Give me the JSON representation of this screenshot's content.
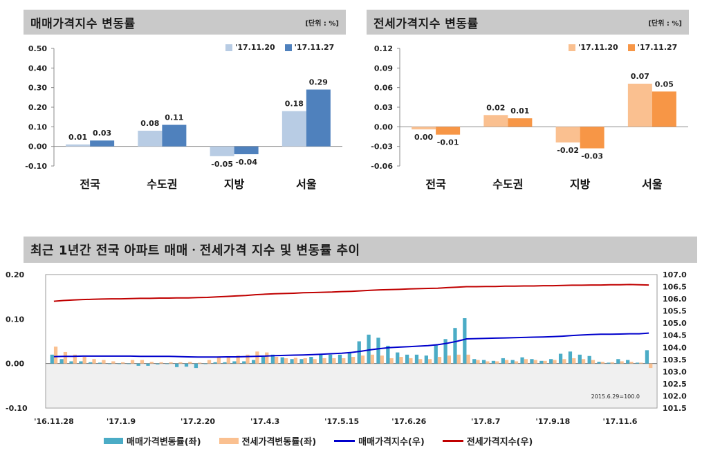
{
  "chart_data": [
    {
      "type": "bar",
      "title": "매매가격지수 변동률",
      "unit": "[단위 : %]",
      "categories": [
        "전국",
        "수도권",
        "지방",
        "서울"
      ],
      "series": [
        {
          "name": "'17.11.20",
          "values": [
            0.01,
            0.08,
            -0.05,
            0.18
          ],
          "color": "#b8cce4"
        },
        {
          "name": "'17.11.27",
          "values": [
            0.03,
            0.11,
            -0.04,
            0.29
          ],
          "color": "#4f81bd"
        }
      ],
      "data_labels": [
        [
          "0.01",
          "0.08",
          "-0.05",
          "0.18"
        ],
        [
          "0.03",
          "0.11",
          "-0.04",
          "0.29"
        ]
      ],
      "ylim": [
        -0.1,
        0.5
      ],
      "yticks": [
        "-0.10",
        "0.00",
        "0.10",
        "0.20",
        "0.30",
        "0.40",
        "0.50"
      ],
      "legend": "top-right"
    },
    {
      "type": "bar",
      "title": "전세가격지수 변동률",
      "unit": "[단위 : %]",
      "categories": [
        "전국",
        "수도권",
        "지방",
        "서울"
      ],
      "series": [
        {
          "name": "'17.11.20",
          "values": [
            -0.004,
            0.018,
            -0.024,
            0.066
          ],
          "color": "#fac090"
        },
        {
          "name": "'17.11.27",
          "values": [
            -0.012,
            0.013,
            -0.033,
            0.054
          ],
          "color": "#f79646"
        }
      ],
      "data_labels": [
        [
          "0.00",
          "0.02",
          "-0.02",
          "0.07"
        ],
        [
          "-0.01",
          "0.01",
          "-0.03",
          "0.05"
        ]
      ],
      "ylim": [
        -0.06,
        0.12
      ],
      "yticks": [
        "-0.06",
        "-0.03",
        "0.00",
        "0.03",
        "0.06",
        "0.09",
        "0.12"
      ],
      "legend": "top-right"
    },
    {
      "type": "bar+line",
      "title": "최근 1년간 전국 아파트 매매ㆍ전세가격 지수 및 변동률 추이",
      "note": "2015.6.29=100.0",
      "x_ticks": [
        "'16.11.28",
        "'17.1.9",
        "'17.2.20",
        "'17.4.3",
        "'17.5.15",
        "'17.6.26",
        "'17.8.7",
        "'17.9.18",
        "'17.11.6"
      ],
      "y_left": {
        "ylim": [
          -0.1,
          0.2
        ],
        "ticks": [
          "-0.10",
          "0.00",
          "0.10",
          "0.20"
        ]
      },
      "y_right": {
        "ylim": [
          101.5,
          107.0
        ],
        "ticks": [
          "101.5",
          "102.0",
          "102.5",
          "103.0",
          "103.5",
          "104.0",
          "104.5",
          "105.0",
          "105.5",
          "106.0",
          "106.5",
          "107.0"
        ]
      },
      "series": [
        {
          "name": "매매가격변동률(좌)",
          "kind": "bar",
          "color": "#4bacc6",
          "values": [
            0.02,
            0.01,
            0.005,
            0.005,
            0.003,
            0.002,
            0.0,
            0.0,
            0.0,
            -0.005,
            -0.005,
            -0.002,
            0.0,
            -0.008,
            -0.007,
            -0.01,
            0.0,
            0.003,
            0.003,
            0.005,
            0.005,
            0.008,
            0.015,
            0.02,
            0.014,
            0.01,
            0.01,
            0.015,
            0.02,
            0.02,
            0.02,
            0.025,
            0.05,
            0.065,
            0.058,
            0.04,
            0.025,
            0.02,
            0.02,
            0.018,
            0.042,
            0.055,
            0.08,
            0.102,
            0.01,
            0.008,
            0.006,
            0.012,
            0.008,
            0.014,
            0.01,
            0.006,
            0.01,
            0.022,
            0.027,
            0.02,
            0.017,
            0.004,
            0.002,
            0.01,
            0.008,
            0.002,
            0.03
          ]
        },
        {
          "name": "전세가격변동률(좌)",
          "kind": "bar",
          "color": "#fac090",
          "values": [
            0.038,
            0.026,
            0.02,
            0.015,
            0.01,
            0.008,
            0.005,
            0.003,
            0.008,
            0.008,
            0.004,
            0.003,
            0.003,
            0.003,
            0.004,
            0.002,
            0.008,
            0.015,
            0.015,
            0.018,
            0.02,
            0.027,
            0.025,
            0.015,
            0.012,
            0.013,
            0.012,
            0.01,
            0.012,
            0.012,
            0.012,
            0.015,
            0.018,
            0.02,
            0.018,
            0.012,
            0.015,
            0.012,
            0.01,
            0.01,
            0.015,
            0.018,
            0.02,
            0.02,
            0.008,
            0.005,
            0.005,
            0.008,
            0.005,
            0.01,
            0.008,
            0.006,
            0.008,
            0.01,
            0.012,
            0.01,
            0.008,
            0.004,
            0.003,
            0.005,
            0.004,
            0.002,
            -0.01
          ]
        },
        {
          "name": "매매가격지수(우)",
          "kind": "line",
          "color": "#0000cc",
          "values": [
            103.62,
            103.63,
            103.63,
            103.64,
            103.64,
            103.64,
            103.64,
            103.64,
            103.64,
            103.63,
            103.63,
            103.63,
            103.63,
            103.62,
            103.61,
            103.6,
            103.6,
            103.6,
            103.61,
            103.61,
            103.62,
            103.63,
            103.64,
            103.66,
            103.67,
            103.68,
            103.69,
            103.7,
            103.72,
            103.74,
            103.76,
            103.79,
            103.84,
            103.9,
            103.95,
            103.99,
            104.01,
            104.03,
            104.05,
            104.07,
            104.11,
            104.17,
            104.25,
            104.35,
            104.36,
            104.37,
            104.38,
            104.39,
            104.4,
            104.41,
            104.42,
            104.43,
            104.44,
            104.46,
            104.49,
            104.51,
            104.53,
            104.54,
            104.54,
            104.55,
            104.56,
            104.56,
            104.59
          ]
        },
        {
          "name": "전세가격지수(우)",
          "kind": "line",
          "color": "#c00000",
          "values": [
            105.9,
            105.93,
            105.95,
            105.97,
            105.98,
            105.99,
            106.0,
            106.0,
            106.01,
            106.02,
            106.02,
            106.03,
            106.03,
            106.04,
            106.04,
            106.05,
            106.06,
            106.08,
            106.1,
            106.12,
            106.14,
            106.17,
            106.19,
            106.21,
            106.22,
            106.23,
            106.25,
            106.26,
            106.27,
            106.28,
            106.3,
            106.31,
            106.33,
            106.35,
            106.37,
            106.38,
            106.39,
            106.41,
            106.42,
            106.43,
            106.44,
            106.46,
            106.48,
            106.5,
            106.5,
            106.51,
            106.51,
            106.52,
            106.52,
            106.53,
            106.53,
            106.54,
            106.54,
            106.55,
            106.56,
            106.56,
            106.57,
            106.57,
            106.58,
            106.58,
            106.59,
            106.58,
            106.57
          ]
        }
      ],
      "legend": "bottom"
    }
  ]
}
